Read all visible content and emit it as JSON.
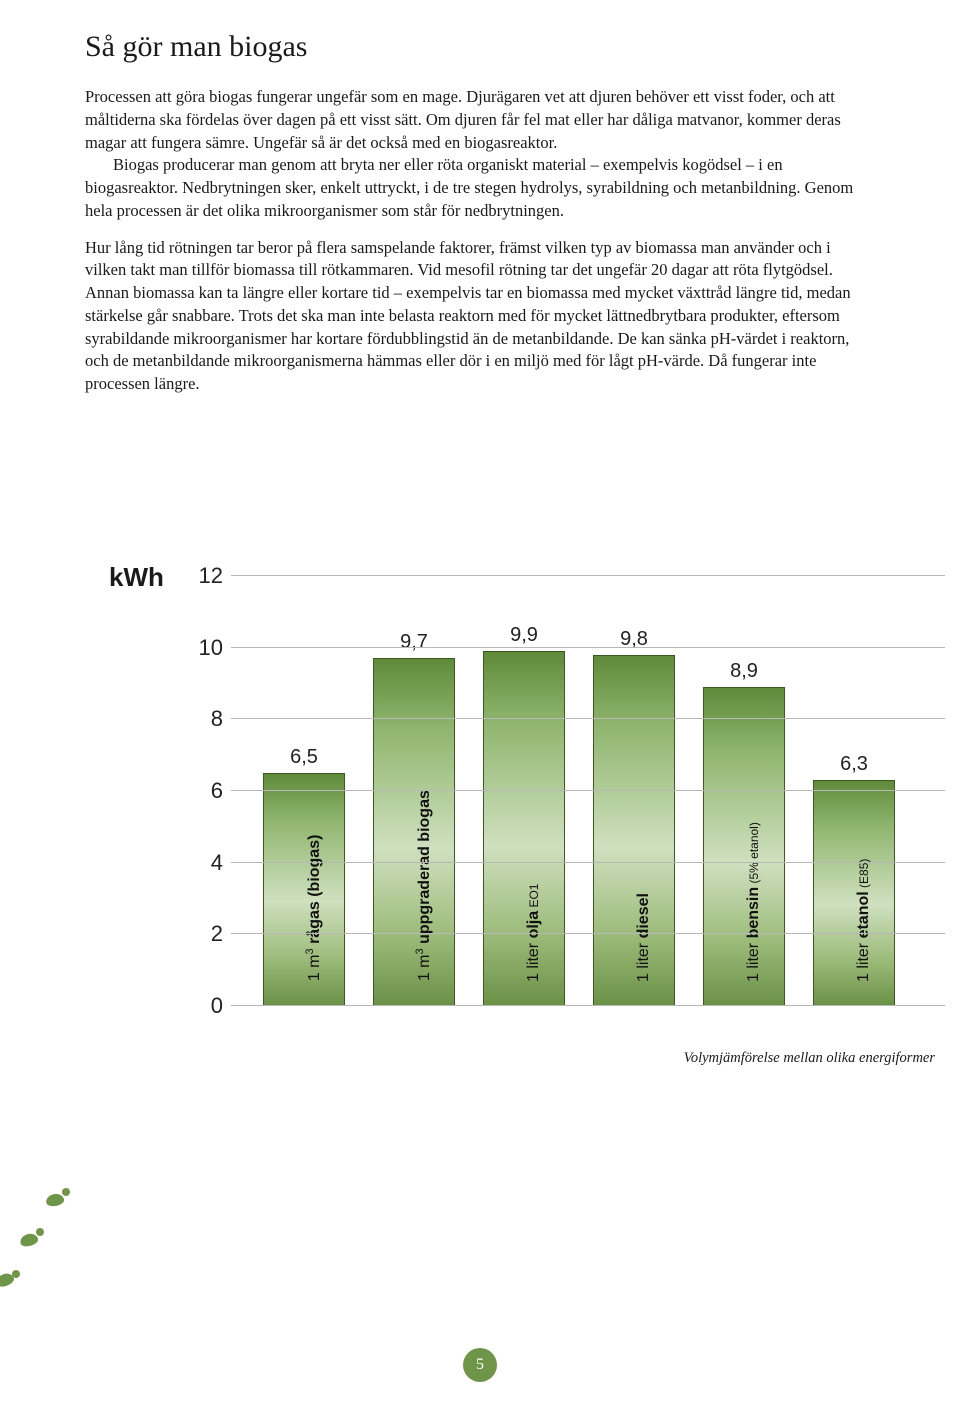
{
  "title": "Så gör man biogas",
  "paragraphs": {
    "p1": "Processen att göra biogas fungerar ungefär som en mage. Djurägaren vet att djuren behöver ett visst foder, och att måltiderna ska fördelas över dagen på ett visst sätt. Om djuren får fel mat eller har dåliga matvanor, kommer deras magar att fungera sämre. Ungefär så är det också med en biogasreaktor.",
    "p2": "Biogas producerar man genom att bryta ner eller röta organiskt material – exempelvis kogödsel – i en biogasreaktor. Nedbrytningen sker, enkelt uttryckt, i de tre stegen hydrolys, syrabildning och metanbildning. Genom hela processen är det olika mikroorganismer som står för nedbrytningen.",
    "p3": "Hur lång tid rötningen tar beror på flera samspelande faktorer, främst vilken typ av biomassa man använder och i vilken takt man tillför biomassa till rötkammaren. Vid mesofil rötning tar det ungefär 20 dagar att röta flytgödsel. Annan biomassa kan ta längre eller kortare tid – exempelvis tar en biomassa med mycket växttråd längre tid, medan stärkelse går snabbare. Trots det ska man inte belasta reaktorn med för mycket lättnedbrytbara produkter, eftersom syrabildande mikroorganismer har kortare fördubblingstid än de metanbildande. De kan sänka pH-värdet i reaktorn, och de metanbildande mikroorganismerna hämmas eller dör i en miljö med för lågt pH-värde. Då fungerar inte processen längre."
  },
  "chart": {
    "axis_title": "kWh",
    "ylim": [
      0,
      12
    ],
    "ytick_step": 2,
    "yticks": [
      "0",
      "2",
      "4",
      "6",
      "8",
      "10",
      "12"
    ],
    "grid_color": "#b8b8b8",
    "bar_border": "#3d5a1f",
    "bar_gradient_top": "#5f8a3a",
    "bar_gradient_mid": "#cfe0bf",
    "bar_gradient_bot": "#6b9147",
    "caption": "Volymjämförelse mellan olika energiformer",
    "bars": [
      {
        "value": 6.5,
        "value_label": "6,5",
        "label_pre": "1 m",
        "label_sup": "3",
        "label_bold": " rågas (biogas)",
        "label_small": ""
      },
      {
        "value": 9.7,
        "value_label": "9,7",
        "label_pre": "1 m",
        "label_sup": "3",
        "label_bold": " uppgraderad biogas",
        "label_small": ""
      },
      {
        "value": 9.9,
        "value_label": "9,9",
        "label_pre": "1 liter ",
        "label_sup": "",
        "label_bold": "olja",
        "label_small": " EO1"
      },
      {
        "value": 9.8,
        "value_label": "9,8",
        "label_pre": "1 liter ",
        "label_sup": "",
        "label_bold": "diesel",
        "label_small": ""
      },
      {
        "value": 8.9,
        "value_label": "8,9",
        "label_pre": "1 liter ",
        "label_sup": "",
        "label_bold": "bensin",
        "label_small": " (5% etanol)"
      },
      {
        "value": 6.3,
        "value_label": "6,3",
        "label_pre": "1 liter ",
        "label_sup": "",
        "label_bold": "etanol",
        "label_small": " (E85)"
      }
    ]
  },
  "page_number": "5",
  "colors": {
    "accent_green": "#6f9648",
    "text": "#1a1a1a"
  }
}
